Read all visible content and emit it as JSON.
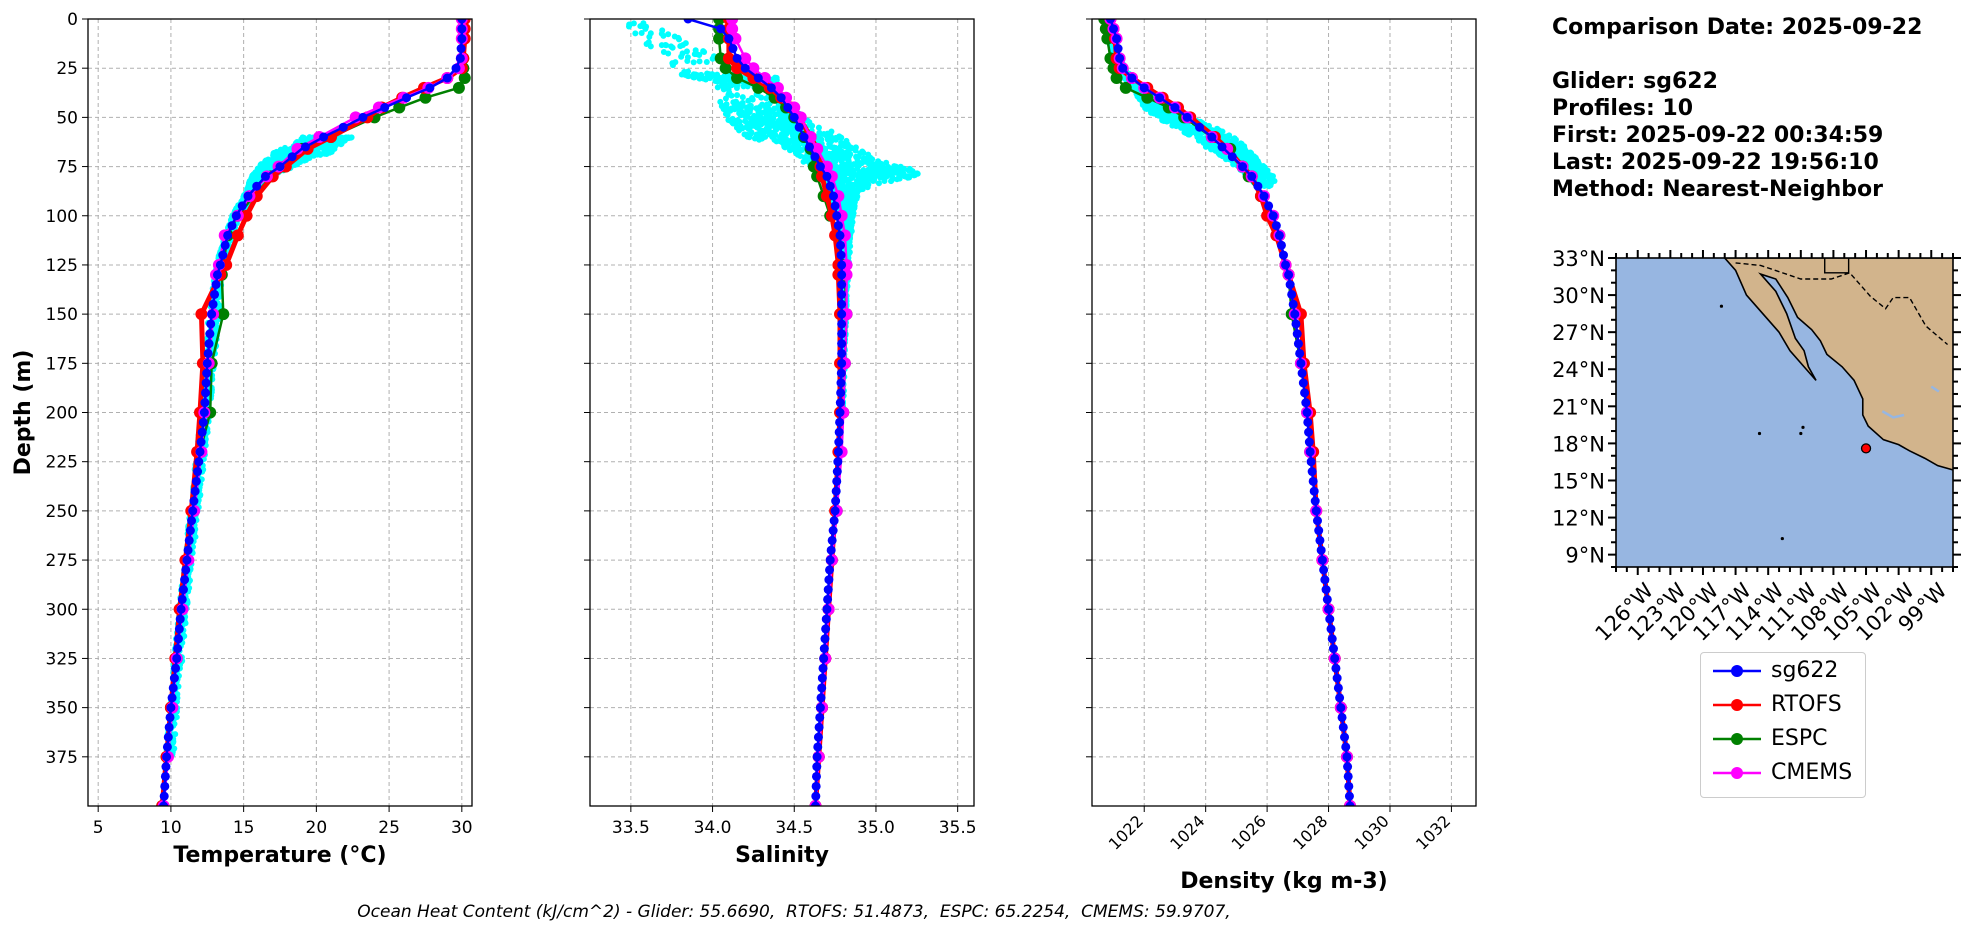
{
  "chart_data": [
    {
      "type": "line",
      "panel": "temperature",
      "xlabel": "Temperature",
      "xlabel_unit": "(°C)",
      "ylabel": "Depth (m)",
      "xlim": [
        4.3,
        30.7
      ],
      "ylim": [
        400,
        0
      ],
      "xticks": [
        5,
        10,
        15,
        20,
        25,
        30
      ],
      "yticks": [
        0,
        25,
        50,
        75,
        100,
        125,
        150,
        175,
        200,
        225,
        250,
        275,
        300,
        325,
        350,
        375
      ],
      "grid": true,
      "depth": [
        0,
        5,
        10,
        20,
        25,
        30,
        35,
        40,
        45,
        50,
        60,
        66,
        75,
        80,
        90,
        100,
        110,
        125,
        130,
        150,
        175,
        200,
        220,
        250,
        275,
        300,
        325,
        350,
        375,
        400
      ],
      "series": [
        {
          "name": "sg622",
          "color": "#0000ff",
          "values": [
            30.0,
            30.0,
            30.0,
            29.9,
            29.6,
            29.0,
            27.8,
            26.2,
            24.7,
            23.2,
            20.5,
            19.0,
            17.5,
            16.5,
            15.3,
            14.5,
            13.9,
            13.4,
            13.2,
            12.8,
            12.5,
            12.3,
            12.0,
            11.5,
            11.1,
            10.7,
            10.4,
            10.0,
            9.7,
            9.5
          ]
        },
        {
          "name": "RTOFS",
          "color": "#ff0000",
          "values": [
            30.2,
            30.2,
            30.2,
            30.1,
            30.0,
            29.0,
            27.4,
            25.9,
            24.5,
            23.5,
            21.0,
            19.4,
            17.9,
            17.0,
            15.9,
            15.2,
            14.6,
            13.8,
            13.4,
            12.1,
            12.2,
            12.0,
            11.8,
            11.4,
            11.0,
            10.6,
            10.3,
            10.0,
            9.7,
            9.4
          ]
        },
        {
          "name": "ESPC",
          "color": "#008000",
          "values": [
            30.1,
            30.1,
            30.1,
            30.1,
            30.1,
            30.2,
            29.8,
            27.5,
            25.7,
            24.0,
            21.0,
            19.0,
            17.8,
            16.9,
            15.7,
            14.6,
            13.9,
            13.6,
            13.5,
            13.6,
            12.8,
            12.7,
            12.0,
            11.5,
            11.1,
            10.7,
            10.4,
            10.0,
            9.7,
            9.4
          ]
        },
        {
          "name": "CMEMS",
          "color": "#ff00ff",
          "values": [
            30.0,
            30.0,
            30.0,
            30.0,
            29.8,
            29.0,
            27.7,
            26.0,
            24.3,
            22.7,
            20.2,
            18.7,
            17.4,
            16.6,
            15.4,
            14.6,
            13.7,
            13.3,
            13.1,
            12.9,
            12.6,
            12.3,
            12.1,
            11.6,
            11.2,
            10.8,
            10.4,
            10.1,
            9.8,
            9.5
          ]
        }
      ],
      "scatter": {
        "name": "glider observations",
        "color": "#00ffff",
        "depth": [
          60,
          62,
          65,
          68,
          70,
          72,
          75,
          78,
          80,
          85,
          90,
          95,
          100,
          110,
          120,
          130,
          150,
          175,
          200,
          225,
          250,
          275,
          300,
          325,
          350,
          375
        ],
        "min": [
          19.0,
          18.8,
          18.0,
          17.0,
          17.0,
          16.5,
          16.0,
          15.8,
          15.5,
          15.3,
          15.0,
          14.6,
          14.2,
          13.7,
          13.3,
          13.0,
          12.6,
          12.3,
          12.0,
          11.7,
          11.3,
          10.9,
          10.5,
          10.2,
          9.9,
          9.6
        ],
        "max": [
          22.5,
          22.0,
          21.5,
          21.0,
          20.0,
          19.2,
          18.5,
          17.5,
          17.0,
          16.3,
          15.8,
          15.3,
          14.8,
          14.2,
          13.9,
          13.6,
          13.3,
          13.0,
          12.7,
          12.3,
          11.9,
          11.5,
          11.1,
          10.8,
          10.5,
          10.2
        ]
      }
    },
    {
      "type": "line",
      "panel": "salinity",
      "xlabel": "Salinity",
      "xlim": [
        33.25,
        35.6
      ],
      "ylim": [
        400,
        0
      ],
      "xticks": [
        33.5,
        34.0,
        34.5,
        35.0,
        35.5
      ],
      "grid": true,
      "depth": [
        0,
        5,
        10,
        20,
        25,
        30,
        35,
        40,
        45,
        50,
        60,
        66,
        75,
        80,
        90,
        100,
        110,
        125,
        130,
        150,
        175,
        200,
        220,
        250,
        275,
        300,
        325,
        350,
        375,
        400
      ],
      "series": [
        {
          "name": "sg622",
          "color": "#0000ff",
          "values": [
            33.85,
            34.05,
            34.1,
            34.15,
            34.2,
            34.28,
            34.36,
            34.42,
            34.46,
            34.5,
            34.56,
            34.6,
            34.66,
            34.7,
            34.74,
            34.76,
            34.78,
            34.79,
            34.79,
            34.79,
            34.79,
            34.78,
            34.77,
            34.75,
            34.72,
            34.7,
            34.68,
            34.66,
            34.64,
            34.63
          ]
        },
        {
          "name": "RTOFS",
          "color": "#ff0000",
          "values": [
            34.1,
            34.1,
            34.1,
            34.1,
            34.15,
            34.25,
            34.35,
            34.42,
            34.48,
            34.53,
            34.6,
            34.64,
            34.66,
            34.67,
            34.7,
            34.73,
            34.75,
            34.77,
            34.77,
            34.78,
            34.78,
            34.78,
            34.77,
            34.75,
            34.73,
            34.71,
            34.69,
            34.67,
            34.65,
            34.63
          ]
        },
        {
          "name": "ESPC",
          "color": "#008000",
          "values": [
            34.04,
            34.04,
            34.04,
            34.05,
            34.08,
            34.15,
            34.28,
            34.38,
            34.45,
            34.5,
            34.56,
            34.6,
            34.62,
            34.64,
            34.68,
            34.72,
            34.76,
            34.8,
            34.81,
            34.82,
            34.81,
            34.8,
            34.78,
            34.76,
            34.73,
            34.71,
            34.69,
            34.67,
            34.65,
            34.63
          ]
        },
        {
          "name": "CMEMS",
          "color": "#ff00ff",
          "values": [
            34.12,
            34.12,
            34.14,
            34.2,
            34.25,
            34.32,
            34.4,
            34.45,
            34.5,
            34.54,
            34.6,
            34.64,
            34.7,
            34.73,
            34.77,
            34.79,
            34.81,
            34.82,
            34.82,
            34.82,
            34.81,
            34.8,
            34.79,
            34.76,
            34.73,
            34.71,
            34.69,
            34.67,
            34.65,
            34.63
          ]
        }
      ],
      "scatter": {
        "name": "glider observations",
        "color": "#00ffff",
        "depth": [
          2,
          28,
          30,
          32,
          44,
          48,
          52,
          56,
          60,
          64,
          68,
          72,
          76,
          78,
          80,
          84,
          88,
          92,
          96,
          100,
          110,
          120,
          130,
          150,
          175,
          200
        ],
        "min": [
          33.45,
          33.8,
          33.9,
          34.0,
          34.05,
          34.08,
          34.1,
          34.15,
          34.2,
          34.4,
          34.5,
          34.55,
          34.6,
          34.65,
          34.65,
          34.68,
          34.7,
          34.72,
          34.74,
          34.76,
          34.78,
          34.79,
          34.8,
          34.8,
          34.79,
          34.78
        ],
        "max": [
          33.6,
          34.3,
          34.4,
          34.4,
          34.45,
          34.55,
          34.6,
          34.7,
          34.8,
          34.85,
          34.95,
          35.05,
          35.2,
          35.3,
          35.25,
          35.0,
          34.9,
          34.88,
          34.87,
          34.86,
          34.85,
          34.84,
          34.83,
          34.82,
          34.81,
          34.8
        ]
      }
    },
    {
      "type": "line",
      "panel": "density",
      "xlabel": "Density (kg m-3)",
      "xlim": [
        1020.3,
        1032.8
      ],
      "ylim": [
        400,
        0
      ],
      "xticks": [
        1022,
        1024,
        1026,
        1028,
        1030,
        1032
      ],
      "grid": true,
      "depth": [
        0,
        5,
        10,
        20,
        25,
        30,
        35,
        40,
        45,
        50,
        60,
        66,
        75,
        80,
        90,
        100,
        110,
        125,
        130,
        150,
        175,
        200,
        220,
        250,
        275,
        300,
        325,
        350,
        375,
        400
      ],
      "series": [
        {
          "name": "sg622",
          "color": "#0000ff",
          "values": [
            1020.9,
            1021.0,
            1021.1,
            1021.2,
            1021.3,
            1021.6,
            1022.0,
            1022.5,
            1023.0,
            1023.4,
            1024.2,
            1024.6,
            1025.2,
            1025.5,
            1025.9,
            1026.2,
            1026.4,
            1026.6,
            1026.7,
            1026.9,
            1027.1,
            1027.3,
            1027.4,
            1027.6,
            1027.8,
            1028.0,
            1028.2,
            1028.4,
            1028.6,
            1028.7
          ]
        },
        {
          "name": "RTOFS",
          "color": "#ff0000",
          "values": [
            1020.9,
            1021.0,
            1021.05,
            1021.1,
            1021.2,
            1021.6,
            1022.1,
            1022.6,
            1023.1,
            1023.5,
            1024.3,
            1024.7,
            1025.2,
            1025.5,
            1025.8,
            1026.0,
            1026.3,
            1026.6,
            1026.7,
            1027.1,
            1027.2,
            1027.4,
            1027.5,
            1027.6,
            1027.8,
            1028.0,
            1028.2,
            1028.4,
            1028.6,
            1028.7
          ]
        },
        {
          "name": "ESPC",
          "color": "#008000",
          "values": [
            1020.7,
            1020.75,
            1020.8,
            1020.9,
            1021.0,
            1021.1,
            1021.4,
            1022.1,
            1022.8,
            1023.3,
            1024.2,
            1024.8,
            1025.2,
            1025.4,
            1025.8,
            1026.1,
            1026.4,
            1026.6,
            1026.7,
            1026.8,
            1027.1,
            1027.3,
            1027.4,
            1027.6,
            1027.8,
            1028.0,
            1028.2,
            1028.4,
            1028.6,
            1028.7
          ]
        },
        {
          "name": "CMEMS",
          "color": "#ff00ff",
          "values": [
            1020.9,
            1021.0,
            1021.1,
            1021.2,
            1021.3,
            1021.6,
            1022.0,
            1022.5,
            1023.0,
            1023.4,
            1024.2,
            1024.7,
            1025.2,
            1025.5,
            1025.9,
            1026.2,
            1026.4,
            1026.6,
            1026.7,
            1026.9,
            1027.1,
            1027.3,
            1027.4,
            1027.6,
            1027.8,
            1028.0,
            1028.2,
            1028.4,
            1028.6,
            1028.7
          ]
        }
      ],
      "scatter": {
        "name": "glider observations",
        "color": "#00ffff",
        "depth": [
          0,
          10,
          20,
          30,
          40,
          45,
          50,
          55,
          60,
          65,
          70,
          75,
          80,
          85
        ],
        "min": [
          1020.7,
          1020.8,
          1021.0,
          1021.3,
          1021.8,
          1022.0,
          1022.4,
          1023.0,
          1023.5,
          1024.0,
          1024.5,
          1025.0,
          1025.4,
          1025.6
        ],
        "max": [
          1020.9,
          1021.0,
          1021.2,
          1021.6,
          1022.4,
          1022.9,
          1023.5,
          1024.3,
          1024.9,
          1025.3,
          1025.6,
          1025.9,
          1026.2,
          1026.3
        ]
      }
    },
    {
      "type": "map",
      "panel": "location",
      "lon_range": [
        -128,
        -97
      ],
      "lat_range": [
        8,
        33
      ],
      "lon_ticks": [
        "126°W",
        "123°W",
        "120°W",
        "117°W",
        "114°W",
        "111°W",
        "108°W",
        "105°W",
        "102°W",
        "99°W"
      ],
      "lat_ticks": [
        "33°N",
        "30°N",
        "27°N",
        "24°N",
        "21°N",
        "18°N",
        "15°N",
        "12°N",
        "9°N"
      ],
      "glider_position": {
        "lon": -105.0,
        "lat": 17.6
      },
      "colors": {
        "ocean": "#97b6e1",
        "land": "#d2b48c",
        "marker": "#ff0000"
      }
    }
  ],
  "info": {
    "line1": "Comparison Date: 2025-09-22",
    "line2": "Glider: sg622",
    "line3": "Profiles: 10",
    "line4": "First: 2025-09-22 00:34:59",
    "line5": "Last: 2025-09-22 19:56:10",
    "line6": "Method: Nearest-Neighbor"
  },
  "legend": [
    {
      "name": "sg622",
      "color": "#0000ff"
    },
    {
      "name": "RTOFS",
      "color": "#ff0000"
    },
    {
      "name": "ESPC",
      "color": "#008000"
    },
    {
      "name": "CMEMS",
      "color": "#ff00ff"
    }
  ],
  "footer": "Ocean Heat Content (kJ/cm^2) - Glider: 55.6690,  RTOFS: 51.4873,  ESPC: 65.2254,  CMEMS: 59.9707,"
}
